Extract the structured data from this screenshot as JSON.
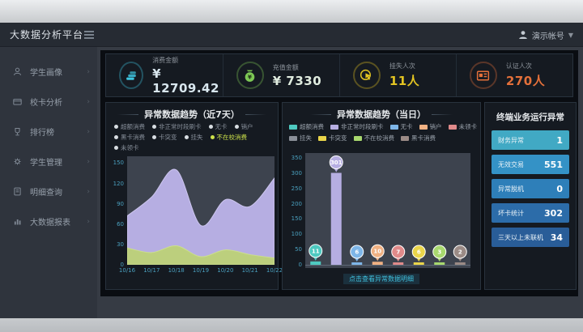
{
  "navbar": {
    "title": "大数据分析平台",
    "user_name": "演示帐号"
  },
  "sidebar": {
    "items": [
      {
        "label": "学生画像",
        "icon": "student-icon"
      },
      {
        "label": "校卡分析",
        "icon": "card-icon"
      },
      {
        "label": "排行榜",
        "icon": "trophy-icon"
      },
      {
        "label": "学生管理",
        "icon": "gear-icon"
      },
      {
        "label": "明细查询",
        "icon": "search-doc-icon"
      },
      {
        "label": "大数据报表",
        "icon": "report-icon"
      }
    ]
  },
  "kpis": [
    {
      "label": "消费金额",
      "value": "¥ 12709.42",
      "color": "#3ec6e0",
      "value_color": "#d8e6ee",
      "icon": "coins-icon"
    },
    {
      "label": "充值金额",
      "value": "¥ 7330",
      "color": "#7dc855",
      "value_color": "#e0ecdf",
      "icon": "moneybag-icon"
    },
    {
      "label": "挂失人次",
      "value": "11人",
      "color": "#e3c422",
      "value_color": "#e3c422",
      "icon": "hand-icon"
    },
    {
      "label": "认证人次",
      "value": "270人",
      "color": "#e4703a",
      "value_color": "#e4703a",
      "icon": "idcard-icon"
    }
  ],
  "terminal_panel": {
    "title": "终端业务运行异常",
    "rows": [
      {
        "label": "财务异常",
        "value": "1",
        "color": "#41a9c4"
      },
      {
        "label": "无效交易",
        "value": "551",
        "color": "#3492c6"
      },
      {
        "label": "异常脱机",
        "value": "0",
        "color": "#2e7fb9"
      },
      {
        "label": "坏卡统计",
        "value": "302",
        "color": "#2c6ca9"
      },
      {
        "label": "三天以上未联机",
        "value": "34",
        "color": "#295d98"
      }
    ]
  },
  "detail_link": "点击查看异常数据明细",
  "chart_data": [
    {
      "type": "area",
      "title": "异常数据趋势（近7天）",
      "x": [
        "10/16",
        "10/17",
        "10/18",
        "10/19",
        "10/20",
        "10/21",
        "10/22"
      ],
      "series": [
        {
          "name": "非正常时段刷卡",
          "color": "#b6aee2",
          "stroke": "#cdc6ef",
          "values": [
            72,
            100,
            140,
            58,
            96,
            86,
            128
          ]
        },
        {
          "name": "不在校消费",
          "color": "#bccf7d",
          "stroke": "#ccdf8e",
          "values": [
            25,
            18,
            28,
            12,
            22,
            15,
            10
          ]
        }
      ],
      "ylim": [
        0,
        160
      ],
      "yticks": [
        0,
        30,
        60,
        90,
        120,
        150
      ],
      "legend_rows": [
        [
          {
            "label": "超额消费",
            "selected": false
          },
          {
            "label": "非正常时段刷卡",
            "selected": false
          },
          {
            "label": "无卡",
            "selected": false
          },
          {
            "label": "销户",
            "selected": false
          }
        ],
        [
          {
            "label": "黑卡消费",
            "selected": false
          },
          {
            "label": "卡突变",
            "selected": false
          },
          {
            "label": "挂失",
            "selected": false
          },
          {
            "label": "不在校消费",
            "selected": true
          }
        ],
        [
          {
            "label": "未领卡",
            "selected": false
          }
        ]
      ],
      "legend_position": "top",
      "grid": false
    },
    {
      "type": "bar",
      "title": "异常数据趋势（当日）",
      "categories": [
        "超额消费",
        "非正常时段刷卡",
        "无卡",
        "销户",
        "未领卡",
        "卡突变",
        "不在校消费",
        "黑卡消费"
      ],
      "values": [
        11,
        301,
        6,
        10,
        7,
        6,
        3,
        2
      ],
      "colors": [
        "#4ec9c0",
        "#b6aee2",
        "#7eb6e8",
        "#f0b183",
        "#e08a8a",
        "#ead54a",
        "#a8d86e",
        "#9b8b86"
      ],
      "ylim": [
        0,
        350
      ],
      "yticks": [
        0,
        50,
        100,
        150,
        200,
        250,
        300,
        350
      ],
      "legend_rows": [
        [
          {
            "label": "超额消费",
            "color": "#4ec9c0"
          },
          {
            "label": "非正常时段刷卡",
            "color": "#b6aee2"
          },
          {
            "label": "无卡",
            "color": "#7eb6e8"
          },
          {
            "label": "销户",
            "color": "#f0b183"
          },
          {
            "label": "未领卡",
            "color": "#e08a8a"
          }
        ],
        [
          {
            "label": "挂失",
            "color": "#8a8f98"
          },
          {
            "label": "卡突变",
            "color": "#ead54a"
          },
          {
            "label": "不在校消费",
            "color": "#a8d86e"
          },
          {
            "label": "黑卡消费",
            "color": "#9b8b86"
          }
        ]
      ],
      "grid": false
    }
  ]
}
